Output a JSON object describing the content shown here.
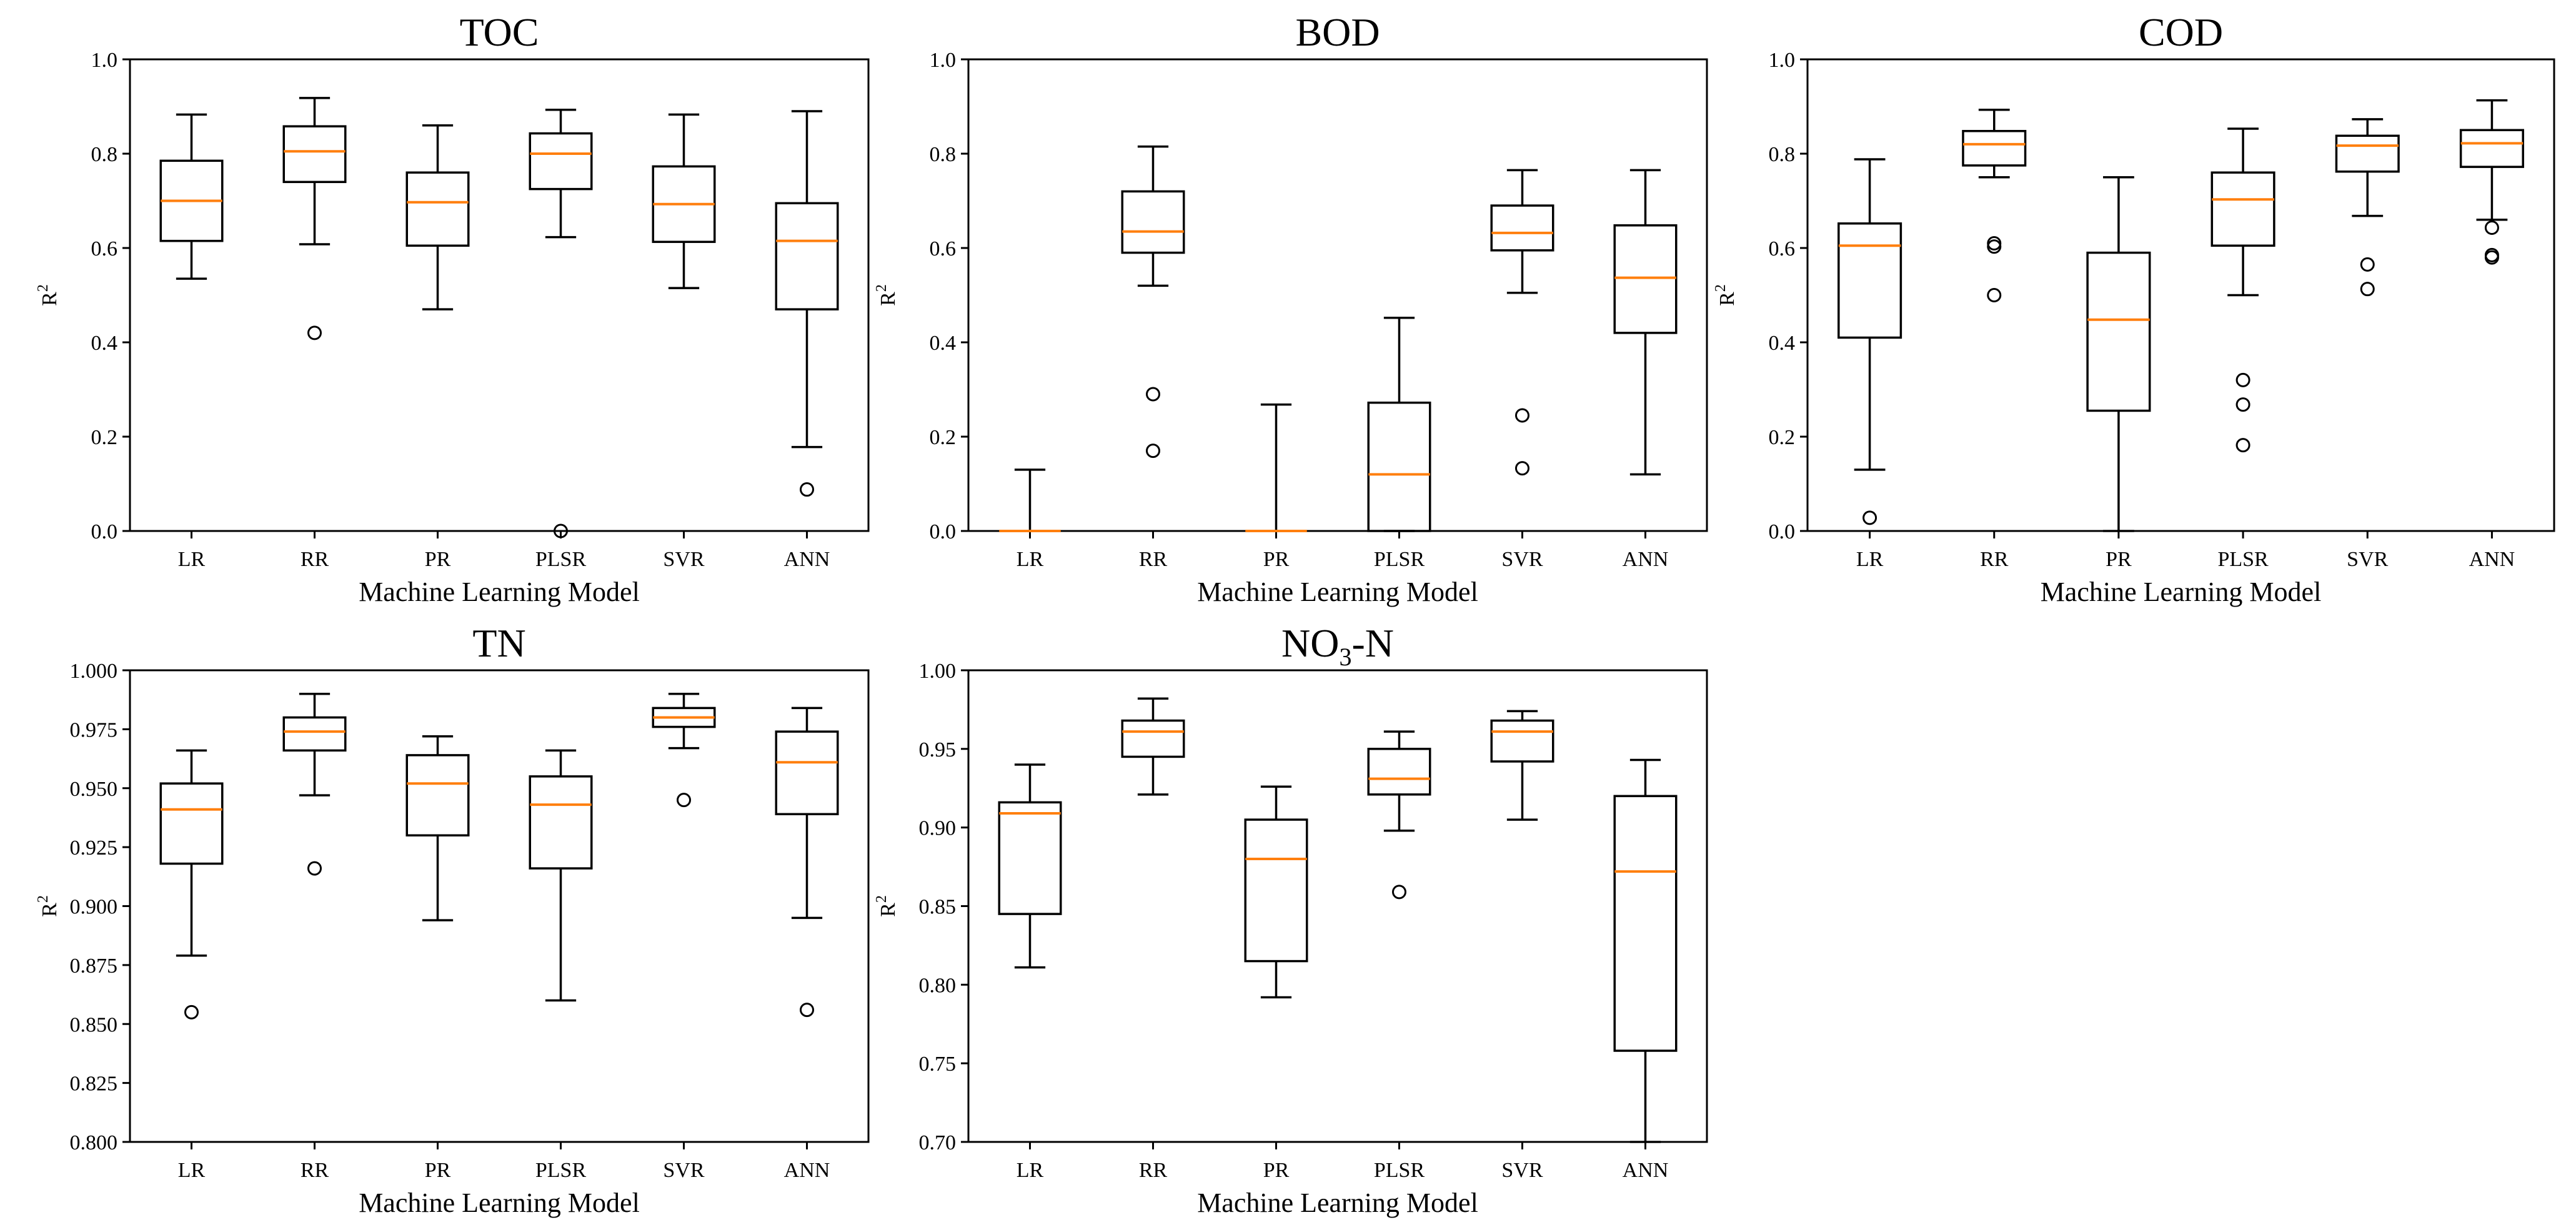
{
  "chart_data": [
    {
      "type": "box",
      "title": "TOC",
      "xlabel": "Machine Learning Model",
      "ylabel": "R",
      "ylabel_sup": "2",
      "ylim": [
        0.0,
        1.0
      ],
      "yticks": [
        "0.0",
        "0.2",
        "0.4",
        "0.6",
        "0.8",
        "1.0"
      ],
      "categories": [
        "LR",
        "RR",
        "PR",
        "PLSR",
        "SVR",
        "ANN"
      ],
      "boxes": [
        {
          "whislo": 0.535,
          "q1": 0.615,
          "med": 0.7,
          "q3": 0.785,
          "whishi": 0.883,
          "fliers": []
        },
        {
          "whislo": 0.608,
          "q1": 0.74,
          "med": 0.805,
          "q3": 0.858,
          "whishi": 0.918,
          "fliers": [
            0.42
          ]
        },
        {
          "whislo": 0.47,
          "q1": 0.605,
          "med": 0.697,
          "q3": 0.76,
          "whishi": 0.86,
          "fliers": []
        },
        {
          "whislo": 0.623,
          "q1": 0.725,
          "med": 0.8,
          "q3": 0.843,
          "whishi": 0.893,
          "fliers": [
            0.0
          ]
        },
        {
          "whislo": 0.515,
          "q1": 0.613,
          "med": 0.693,
          "q3": 0.773,
          "whishi": 0.883,
          "fliers": []
        },
        {
          "whislo": 0.178,
          "q1": 0.47,
          "med": 0.615,
          "q3": 0.695,
          "whishi": 0.89,
          "fliers": [
            0.088
          ]
        }
      ]
    },
    {
      "type": "box",
      "title": "BOD",
      "xlabel": "Machine Learning Model",
      "ylabel": "R",
      "ylabel_sup": "2",
      "ylim": [
        0.0,
        1.0
      ],
      "yticks": [
        "0.0",
        "0.2",
        "0.4",
        "0.6",
        "0.8",
        "1.0"
      ],
      "categories": [
        "LR",
        "RR",
        "PR",
        "PLSR",
        "SVR",
        "ANN"
      ],
      "boxes": [
        {
          "whislo": 0.0,
          "q1": 0.0,
          "med": 0.0,
          "q3": 0.0,
          "whishi": 0.13,
          "fliers": []
        },
        {
          "whislo": 0.52,
          "q1": 0.59,
          "med": 0.635,
          "q3": 0.72,
          "whishi": 0.815,
          "fliers": [
            0.29,
            0.17
          ]
        },
        {
          "whislo": 0.0,
          "q1": 0.0,
          "med": 0.0,
          "q3": 0.0,
          "whishi": 0.268,
          "fliers": []
        },
        {
          "whislo": 0.0,
          "q1": 0.0,
          "med": 0.12,
          "q3": 0.272,
          "whishi": 0.452,
          "fliers": []
        },
        {
          "whislo": 0.505,
          "q1": 0.595,
          "med": 0.632,
          "q3": 0.69,
          "whishi": 0.765,
          "fliers": [
            0.245,
            0.133
          ]
        },
        {
          "whislo": 0.12,
          "q1": 0.42,
          "med": 0.537,
          "q3": 0.648,
          "whishi": 0.765,
          "fliers": []
        }
      ]
    },
    {
      "type": "box",
      "title": "COD",
      "xlabel": "Machine Learning Model",
      "ylabel": "R",
      "ylabel_sup": "2",
      "ylim": [
        0.0,
        1.0
      ],
      "yticks": [
        "0.0",
        "0.2",
        "0.4",
        "0.6",
        "0.8",
        "1.0"
      ],
      "categories": [
        "LR",
        "RR",
        "PR",
        "PLSR",
        "SVR",
        "ANN"
      ],
      "boxes": [
        {
          "whislo": 0.13,
          "q1": 0.41,
          "med": 0.605,
          "q3": 0.652,
          "whishi": 0.788,
          "fliers": [
            0.028
          ]
        },
        {
          "whislo": 0.75,
          "q1": 0.775,
          "med": 0.82,
          "q3": 0.848,
          "whishi": 0.893,
          "fliers": [
            0.61,
            0.603,
            0.5
          ]
        },
        {
          "whislo": 0.0,
          "q1": 0.255,
          "med": 0.448,
          "q3": 0.59,
          "whishi": 0.75,
          "fliers": []
        },
        {
          "whislo": 0.5,
          "q1": 0.605,
          "med": 0.703,
          "q3": 0.76,
          "whishi": 0.853,
          "fliers": [
            0.32,
            0.268,
            0.182
          ]
        },
        {
          "whislo": 0.668,
          "q1": 0.762,
          "med": 0.817,
          "q3": 0.838,
          "whishi": 0.873,
          "fliers": [
            0.565,
            0.513
          ]
        },
        {
          "whislo": 0.66,
          "q1": 0.772,
          "med": 0.822,
          "q3": 0.85,
          "whishi": 0.913,
          "fliers": [
            0.643,
            0.585,
            0.58
          ]
        }
      ]
    },
    {
      "type": "box",
      "title": "TN",
      "xlabel": "Machine Learning Model",
      "ylabel": "R",
      "ylabel_sup": "2",
      "ylim": [
        0.8,
        1.0
      ],
      "yticks": [
        "0.800",
        "0.825",
        "0.850",
        "0.875",
        "0.900",
        "0.925",
        "0.950",
        "0.975",
        "1.000"
      ],
      "categories": [
        "LR",
        "RR",
        "PR",
        "PLSR",
        "SVR",
        "ANN"
      ],
      "boxes": [
        {
          "whislo": 0.879,
          "q1": 0.918,
          "med": 0.941,
          "q3": 0.952,
          "whishi": 0.966,
          "fliers": [
            0.855
          ]
        },
        {
          "whislo": 0.947,
          "q1": 0.966,
          "med": 0.974,
          "q3": 0.98,
          "whishi": 0.99,
          "fliers": [
            0.916
          ]
        },
        {
          "whislo": 0.894,
          "q1": 0.93,
          "med": 0.952,
          "q3": 0.964,
          "whishi": 0.972,
          "fliers": []
        },
        {
          "whislo": 0.86,
          "q1": 0.916,
          "med": 0.943,
          "q3": 0.955,
          "whishi": 0.966,
          "fliers": []
        },
        {
          "whislo": 0.967,
          "q1": 0.976,
          "med": 0.98,
          "q3": 0.984,
          "whishi": 0.99,
          "fliers": [
            0.945
          ]
        },
        {
          "whislo": 0.895,
          "q1": 0.939,
          "med": 0.961,
          "q3": 0.974,
          "whishi": 0.984,
          "fliers": [
            0.856
          ]
        }
      ]
    },
    {
      "type": "box",
      "title": "NO",
      "title_sub": "3",
      "title_suffix": "-N",
      "xlabel": "Machine Learning Model",
      "ylabel": "R",
      "ylabel_sup": "2",
      "ylim": [
        0.7,
        1.0
      ],
      "yticks": [
        "0.70",
        "0.75",
        "0.80",
        "0.85",
        "0.90",
        "0.95",
        "1.00"
      ],
      "categories": [
        "LR",
        "RR",
        "PR",
        "PLSR",
        "SVR",
        "ANN"
      ],
      "boxes": [
        {
          "whislo": 0.811,
          "q1": 0.845,
          "med": 0.909,
          "q3": 0.916,
          "whishi": 0.94,
          "fliers": []
        },
        {
          "whislo": 0.921,
          "q1": 0.945,
          "med": 0.961,
          "q3": 0.968,
          "whishi": 0.982,
          "fliers": []
        },
        {
          "whislo": 0.792,
          "q1": 0.815,
          "med": 0.88,
          "q3": 0.905,
          "whishi": 0.926,
          "fliers": []
        },
        {
          "whislo": 0.898,
          "q1": 0.921,
          "med": 0.931,
          "q3": 0.95,
          "whishi": 0.961,
          "fliers": [
            0.859
          ]
        },
        {
          "whislo": 0.905,
          "q1": 0.942,
          "med": 0.961,
          "q3": 0.968,
          "whishi": 0.974,
          "fliers": []
        },
        {
          "whislo": 0.7,
          "q1": 0.758,
          "med": 0.872,
          "q3": 0.92,
          "whishi": 0.943,
          "fliers": []
        }
      ]
    }
  ]
}
